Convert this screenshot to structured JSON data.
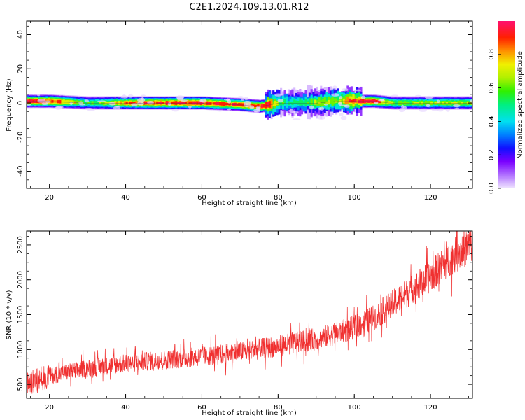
{
  "figure": {
    "title": "C2E1.2024.109.13.01.R12"
  },
  "chart_data": [
    {
      "type": "heatmap",
      "title": "",
      "xlabel": "Height of straight line (km)",
      "ylabel": "Frequency (Hz)",
      "xlim": [
        14,
        131
      ],
      "ylim": [
        -50,
        48
      ],
      "xticks": [
        20,
        40,
        60,
        80,
        100,
        120
      ],
      "yticks": [
        -40,
        -20,
        0,
        20,
        40
      ],
      "grid": false,
      "band": {
        "description_points_km": [
          14,
          20,
          30,
          40,
          50,
          60,
          70,
          75,
          78,
          80,
          85,
          90,
          95,
          100,
          105,
          110,
          120,
          131
        ],
        "center_hz": [
          1,
          1,
          0,
          0,
          0,
          0,
          -1,
          -2,
          -1,
          0,
          0,
          0,
          1,
          1,
          1,
          0,
          0,
          0
        ],
        "max_amplitude": [
          0.95,
          0.95,
          0.6,
          0.85,
          0.95,
          0.95,
          0.9,
          0.95,
          0.95,
          0.6,
          0.5,
          0.7,
          0.75,
          0.9,
          0.95,
          0.65,
          0.7,
          0.7
        ]
      },
      "colorbar": {
        "label": "Normalized spectral amplitude",
        "ticks": [
          0.0,
          0.2,
          0.4,
          0.6,
          0.8
        ],
        "range": [
          0,
          1
        ],
        "colormap": "rainbow (lavender→violet→blue→cyan→green→yellow→orange→red→pink)"
      }
    },
    {
      "type": "line",
      "title": "",
      "xlabel": "Height of straight line (km)",
      "ylabel": "SNR (10 * v/v)",
      "xlim": [
        14,
        131
      ],
      "ylim": [
        300,
        2700
      ],
      "xticks": [
        20,
        40,
        60,
        80,
        100,
        120
      ],
      "yticks": [
        500,
        1000,
        1500,
        2000,
        2500
      ],
      "grid": false,
      "series": [
        {
          "color": "#f03030",
          "x": [
            14,
            20,
            30,
            40,
            50,
            60,
            70,
            80,
            90,
            95,
            100,
            105,
            110,
            115,
            120,
            125,
            131
          ],
          "values": [
            500,
            620,
            730,
            800,
            850,
            900,
            960,
            1050,
            1150,
            1220,
            1320,
            1450,
            1650,
            1850,
            2050,
            2300,
            2520
          ]
        }
      ]
    }
  ]
}
